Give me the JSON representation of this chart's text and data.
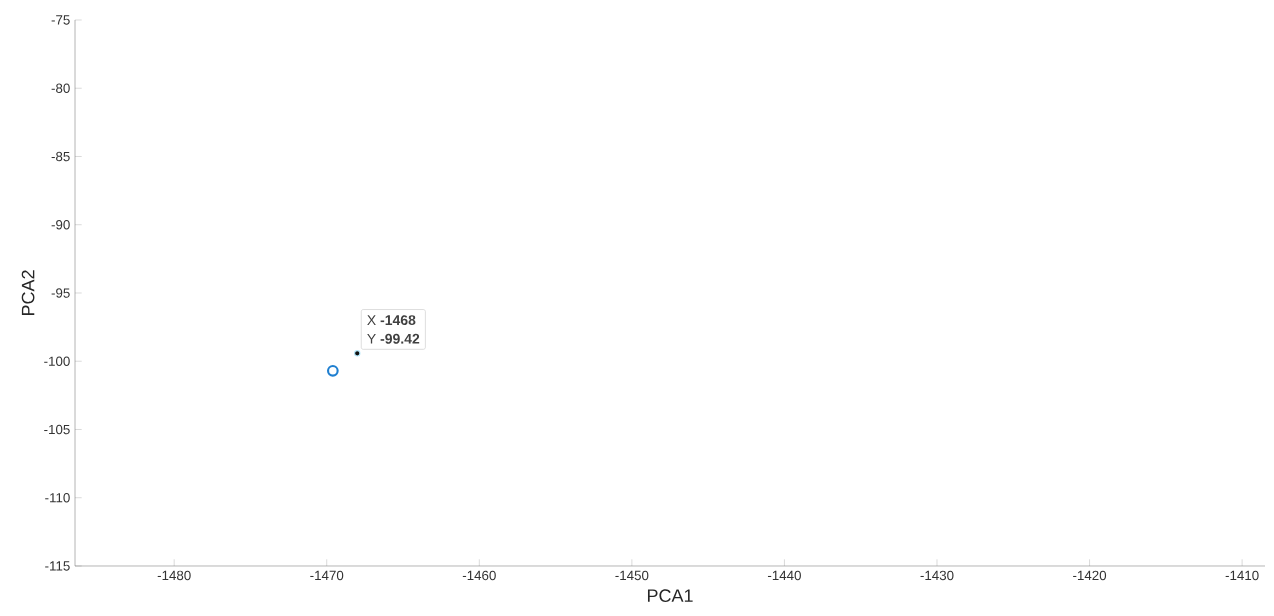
{
  "chart_data": {
    "type": "scatter",
    "xlabel": "PCA1",
    "ylabel": "PCA2",
    "xlim": [
      -1486.5,
      -1408.5
    ],
    "ylim": [
      -115,
      -75
    ],
    "xticks": [
      -1480,
      -1470,
      -1460,
      -1450,
      -1440,
      -1430,
      -1420,
      -1410
    ],
    "yticks": [
      -115,
      -110,
      -105,
      -100,
      -95,
      -90,
      -85,
      -80,
      -75
    ],
    "grid": false,
    "marker": "circle",
    "series": [
      {
        "color": "#1f7fd0",
        "x": [
          -1469.6
        ],
        "values": [
          -100.7
        ]
      },
      {
        "color": "#111111",
        "x": [
          -1468
        ],
        "values": [
          -99.42
        ]
      }
    ],
    "annotations": [
      {
        "text": "X **-1468**",
        "x": -1468,
        "y": -99.42
      },
      {
        "text": "Y **-99.42**",
        "x": -1468,
        "y": -99.42
      }
    ]
  }
}
